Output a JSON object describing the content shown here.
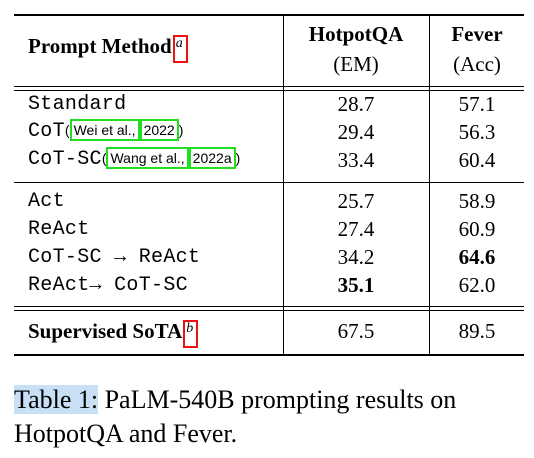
{
  "table": {
    "header": {
      "method": "Prompt Method",
      "method_note": "a",
      "col1_title": "HotpotQA",
      "col1_unit": "(EM)",
      "col2_title": "Fever",
      "col2_unit": "(Acc)"
    },
    "rows": [
      {
        "method": "Standard",
        "cite": "",
        "cite_year": "",
        "hotpotqa": "28.7",
        "fever": "57.1"
      },
      {
        "method": "CoT",
        "cite": "Wei et al.,",
        "cite_year": "2022",
        "hotpotqa": "29.4",
        "fever": "56.3"
      },
      {
        "method": "CoT-SC",
        "cite": "Wang et al.,",
        "cite_year": "2022a",
        "hotpotqa": "33.4",
        "fever": "60.4"
      },
      {
        "method": "Act",
        "cite": "",
        "cite_year": "",
        "hotpotqa": "25.7",
        "fever": "58.9"
      },
      {
        "method": "ReAct",
        "cite": "",
        "cite_year": "",
        "hotpotqa": "27.4",
        "fever": "60.9"
      },
      {
        "method": "CoT-SC → ReAct",
        "cite": "",
        "cite_year": "",
        "hotpotqa": "34.2",
        "fever": "64.6"
      },
      {
        "method": "ReAct→ CoT-SC",
        "cite": "",
        "cite_year": "",
        "hotpotqa": "35.1",
        "fever": "62.0"
      }
    ],
    "supervised": {
      "method": "Supervised SoTA",
      "note": "b",
      "hotpotqa": "67.5",
      "fever": "89.5"
    },
    "bold_cells": [
      "rows.5.fever",
      "rows.6.hotpotqa"
    ]
  },
  "caption": {
    "label": "Table 1:",
    "text": " PaLM-540B prompting results on HotpotQA and Fever."
  },
  "colors": {
    "highlight": "#c8dff5",
    "cite_box": "#22dd22",
    "note_box": "#ee1111"
  }
}
